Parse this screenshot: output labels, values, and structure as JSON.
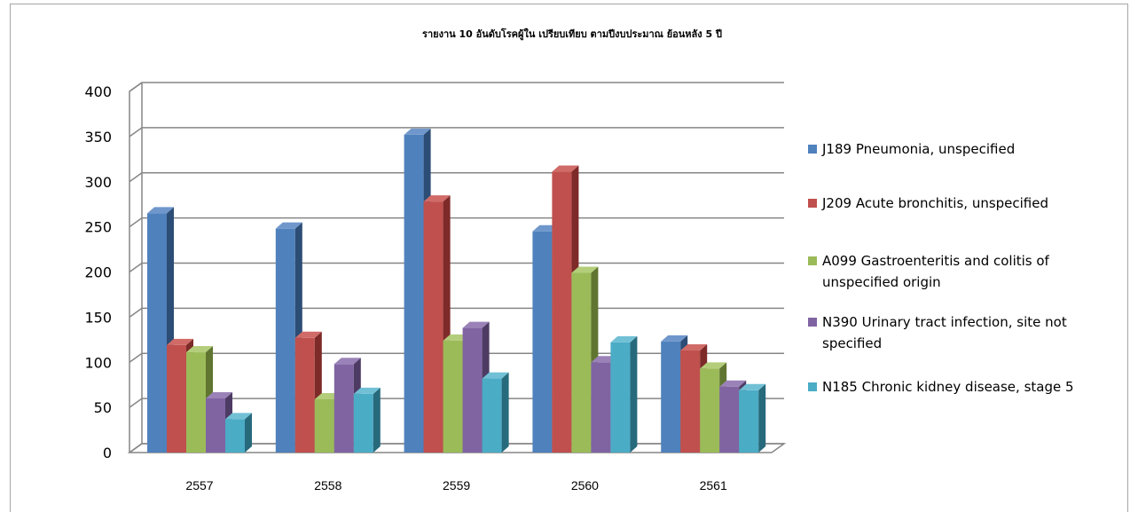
{
  "header": {
    "clipped_title": ""
  },
  "chart_data": {
    "type": "bar",
    "title": "รายงาน 10 อันดับโรคผู้ใน เปรียบเทียบ  ตามปีงบประมาณ ย้อนหลัง 5 ปี",
    "categories": [
      "2557",
      "2558",
      "2559",
      "2560",
      "2561"
    ],
    "series": [
      {
        "name": "J189 Pneumonia, unspecified",
        "legend_lines": [
          "J189 Pneumonia, unspecified"
        ],
        "color": "#4f81bd",
        "dark": "#2c4d75",
        "top": "#6f97cb",
        "values": [
          265,
          248,
          352,
          245,
          123
        ]
      },
      {
        "name": "J209 Acute bronchitis, unspecified",
        "legend_lines": [
          "J209 Acute bronchitis, unspecified"
        ],
        "color": "#c0504d",
        "dark": "#7d2a28",
        "top": "#d06b68",
        "values": [
          119,
          127,
          278,
          311,
          113
        ]
      },
      {
        "name": "A099 Gastroenteritis and colitis of unspecified origin",
        "legend_lines": [
          "A099 Gastroenteritis and colitis of",
          "unspecified origin"
        ],
        "color": "#9bbb59",
        "dark": "#5f7530",
        "top": "#b3cd7b",
        "values": [
          111,
          59,
          124,
          199,
          93
        ]
      },
      {
        "name": "N390 Urinary tract infection, site not specified",
        "legend_lines": [
          "N390 Urinary tract infection, site not",
          "specified"
        ],
        "color": "#8064a2",
        "dark": "#4d3b63",
        "top": "#9a82b8",
        "values": [
          60,
          98,
          138,
          100,
          73
        ]
      },
      {
        "name": "N185 Chronic kidney disease, stage 5",
        "legend_lines": [
          "N185 Chronic kidney disease, stage 5"
        ],
        "color": "#4bacc6",
        "dark": "#276a7c",
        "top": "#71c0d5",
        "values": [
          37,
          65,
          82,
          122,
          69
        ]
      }
    ],
    "ylim": [
      0,
      400
    ],
    "yticks": [
      "0",
      "50",
      "100",
      "150",
      "200",
      "250",
      "300",
      "350",
      "400"
    ],
    "grid": true,
    "legend_position": "right"
  }
}
